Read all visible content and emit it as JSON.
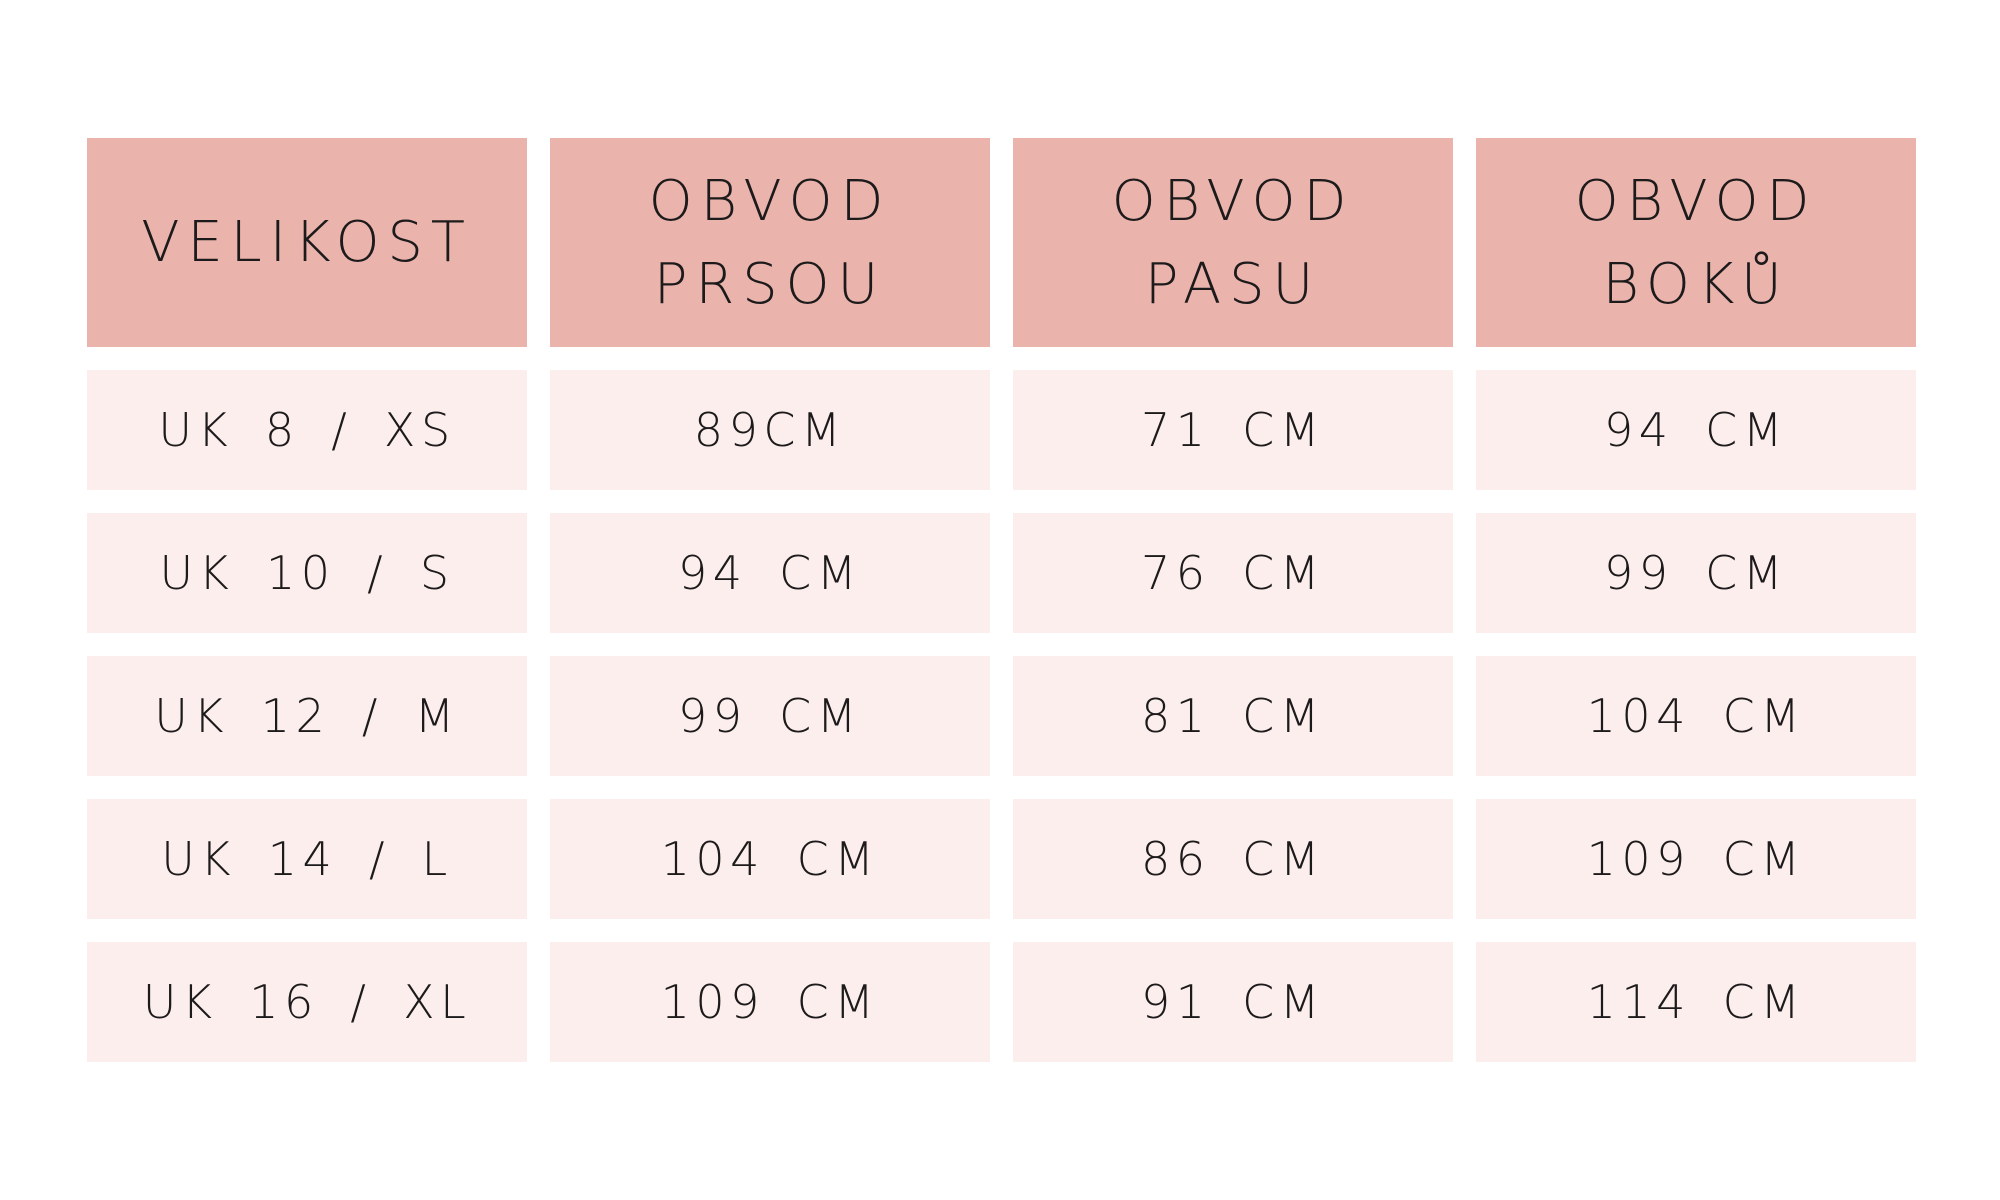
{
  "table": {
    "header": [
      [
        "VELIKOST"
      ],
      [
        "OBVOD",
        "PRSOU"
      ],
      [
        "OBVOD",
        "PASU"
      ],
      [
        "OBVOD",
        "BOKŮ"
      ]
    ],
    "rows": [
      [
        "UK 8 / XS",
        "89CM",
        "71 CM",
        "94 CM"
      ],
      [
        "UK 10 / S",
        "94 CM",
        "76 CM",
        "99 CM"
      ],
      [
        "UK 12 / M",
        "99 CM",
        "81 CM",
        "104 CM"
      ],
      [
        "UK 14 / L",
        "104 CM",
        "86 CM",
        "109 CM"
      ],
      [
        "UK 16 / XL",
        "109 CM",
        "91 CM",
        "114 CM"
      ]
    ]
  }
}
